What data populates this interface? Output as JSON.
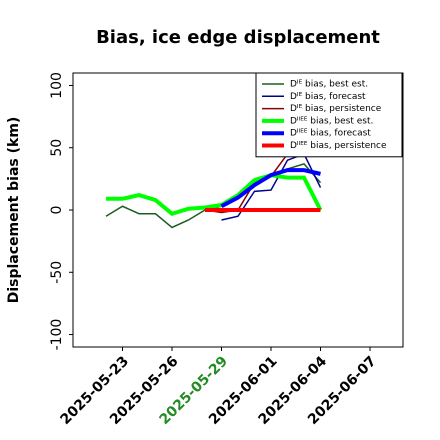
{
  "chart_data": {
    "type": "line",
    "title": "Bias, ice edge displacement",
    "y_label": "Displacement bias (km)",
    "x": [
      "2025-05-22",
      "2025-05-23",
      "2025-05-24",
      "2025-05-25",
      "2025-05-26",
      "2025-05-27",
      "2025-05-28",
      "2025-05-29",
      "2025-05-30",
      "2025-05-31",
      "2025-06-01",
      "2025-06-02",
      "2025-06-03",
      "2025-06-04"
    ],
    "series": [
      {
        "name": "Dᴵᴱ bias, best est.",
        "color": "#1b5e20",
        "width": 1.5,
        "values": [
          -5,
          3,
          -3,
          -3,
          -14,
          -8,
          0,
          3,
          10,
          20,
          27,
          33,
          37,
          22
        ]
      },
      {
        "name": "Dᴵᴱ bias, forecast",
        "color": "#00008b",
        "width": 1.5,
        "values": [
          null,
          null,
          null,
          null,
          null,
          null,
          null,
          -8,
          -5,
          15,
          16,
          40,
          45,
          18
        ]
      },
      {
        "name": "Dᴵᴱ bias, persistence",
        "color": "#8b0000",
        "width": 1.5,
        "values": [
          null,
          null,
          null,
          null,
          null,
          null,
          0,
          -2,
          0,
          22,
          27,
          45,
          45,
          45
        ]
      },
      {
        "name": "Dᴵᴵᴱᴱ bias, best est.",
        "color": "#00ff00",
        "width": 4,
        "values": [
          9,
          9,
          12,
          8,
          -3,
          1,
          2,
          4,
          12,
          24,
          28,
          26,
          26,
          0
        ]
      },
      {
        "name": "Dᴵᴵᴱᴱ bias, forecast",
        "color": "#0000ff",
        "width": 4,
        "values": [
          null,
          null,
          null,
          null,
          null,
          null,
          null,
          3,
          10,
          20,
          28,
          32,
          32,
          29
        ]
      },
      {
        "name": "Dᴵᴵᴱᴱ bias, persistence",
        "color": "#ff0000",
        "width": 4,
        "values": [
          null,
          null,
          null,
          null,
          null,
          null,
          0,
          0,
          0,
          0,
          0,
          0,
          0,
          0
        ]
      }
    ],
    "xlim": [
      "2025-05-20",
      "2025-06-09"
    ],
    "xticks": [
      "2025-05-23",
      "2025-05-26",
      "2025-05-29",
      "2025-06-01",
      "2025-06-04",
      "2025-06-07"
    ],
    "xtick_label_colors": [
      "#000000",
      "#000000",
      "#228b22",
      "#000000",
      "#000000",
      "#000000"
    ],
    "ylim": [
      -110,
      110
    ],
    "yticks": [
      -100,
      -50,
      0,
      50,
      100
    ],
    "legend": "upper right"
  }
}
